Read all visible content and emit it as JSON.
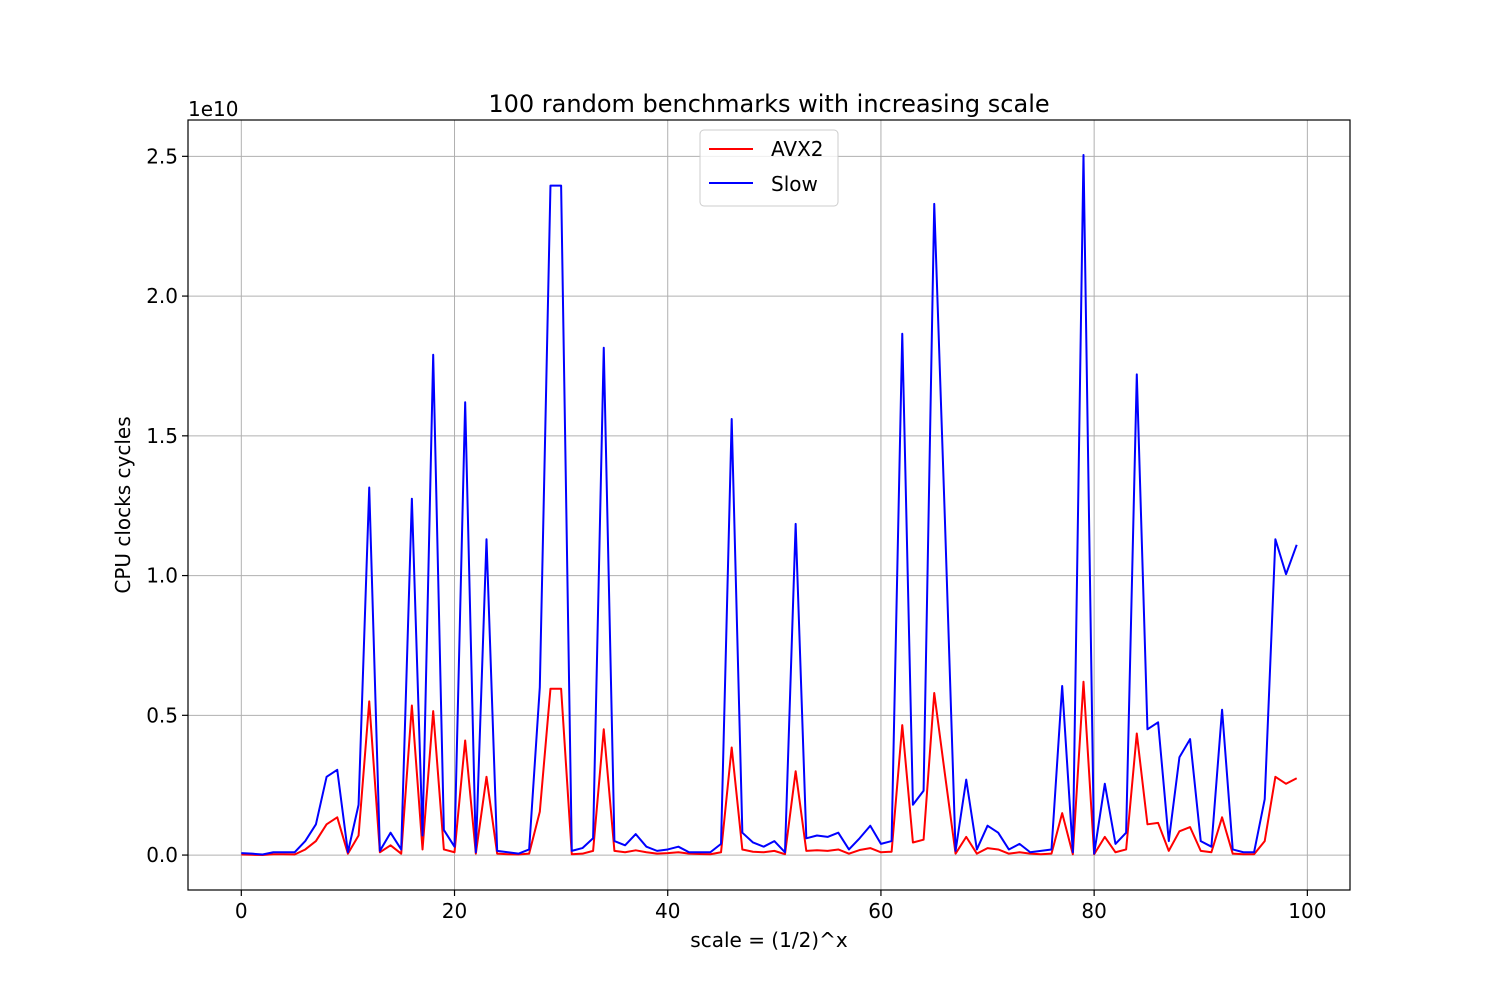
{
  "chart_data": {
    "type": "line",
    "title": "100 random benchmarks with increasing scale",
    "xlabel": "scale = (1/2)^x",
    "ylabel": "CPU clocks cycles",
    "y_multiplier": "1e10",
    "xlim": [
      -5,
      104
    ],
    "ylim": [
      -0.125,
      2.63
    ],
    "xticks": [
      0,
      20,
      40,
      60,
      80,
      100
    ],
    "xtick_labels": [
      "0",
      "20",
      "40",
      "60",
      "80",
      "100"
    ],
    "yticks": [
      0.0,
      0.5,
      1.0,
      1.5,
      2.0,
      2.5
    ],
    "ytick_labels": [
      "0.0",
      "0.5",
      "1.0",
      "1.5",
      "2.0",
      "2.5"
    ],
    "grid": true,
    "legend_position": "top-center",
    "series": [
      {
        "name": "AVX2",
        "color": "#ff0000",
        "values": [
          0.002,
          0.001,
          0.0,
          0.003,
          0.003,
          0.002,
          0.02,
          0.05,
          0.11,
          0.135,
          0.005,
          0.07,
          0.55,
          0.01,
          0.035,
          0.005,
          0.535,
          0.02,
          0.515,
          0.02,
          0.01,
          0.41,
          0.005,
          0.28,
          0.005,
          0.003,
          0.002,
          0.005,
          0.155,
          0.595,
          0.595,
          0.003,
          0.005,
          0.015,
          0.45,
          0.015,
          0.01,
          0.017,
          0.01,
          0.005,
          0.007,
          0.01,
          0.005,
          0.004,
          0.003,
          0.01,
          0.385,
          0.02,
          0.012,
          0.01,
          0.015,
          0.003,
          0.3,
          0.015,
          0.017,
          0.015,
          0.02,
          0.005,
          0.018,
          0.025,
          0.01,
          0.012,
          0.465,
          0.045,
          0.055,
          0.58,
          0.29,
          0.005,
          0.065,
          0.005,
          0.025,
          0.02,
          0.005,
          0.01,
          0.005,
          0.003,
          0.005,
          0.15,
          0.003,
          0.62,
          0.003,
          0.065,
          0.01,
          0.02,
          0.435,
          0.11,
          0.115,
          0.015,
          0.085,
          0.1,
          0.015,
          0.01,
          0.135,
          0.005,
          0.003,
          0.003,
          0.05,
          0.28,
          0.255,
          0.275
        ]
      },
      {
        "name": "Slow",
        "color": "#0000ff",
        "values": [
          0.007,
          0.005,
          0.002,
          0.01,
          0.01,
          0.01,
          0.05,
          0.11,
          0.28,
          0.305,
          0.01,
          0.18,
          1.315,
          0.015,
          0.08,
          0.02,
          1.275,
          0.07,
          1.79,
          0.09,
          0.03,
          1.62,
          0.01,
          1.13,
          0.015,
          0.01,
          0.005,
          0.02,
          0.6,
          2.395,
          2.395,
          0.015,
          0.025,
          0.06,
          1.815,
          0.05,
          0.035,
          0.075,
          0.03,
          0.015,
          0.02,
          0.03,
          0.01,
          0.01,
          0.01,
          0.04,
          1.56,
          0.08,
          0.045,
          0.03,
          0.05,
          0.01,
          1.185,
          0.06,
          0.07,
          0.065,
          0.08,
          0.02,
          0.06,
          0.105,
          0.04,
          0.05,
          1.865,
          0.18,
          0.23,
          2.33,
          1.2,
          0.015,
          0.27,
          0.02,
          0.105,
          0.08,
          0.02,
          0.04,
          0.01,
          0.015,
          0.02,
          0.605,
          0.01,
          2.505,
          0.005,
          0.255,
          0.04,
          0.08,
          1.72,
          0.45,
          0.475,
          0.05,
          0.35,
          0.415,
          0.05,
          0.03,
          0.52,
          0.02,
          0.01,
          0.01,
          0.2,
          1.13,
          1.005,
          1.11
        ]
      }
    ]
  }
}
